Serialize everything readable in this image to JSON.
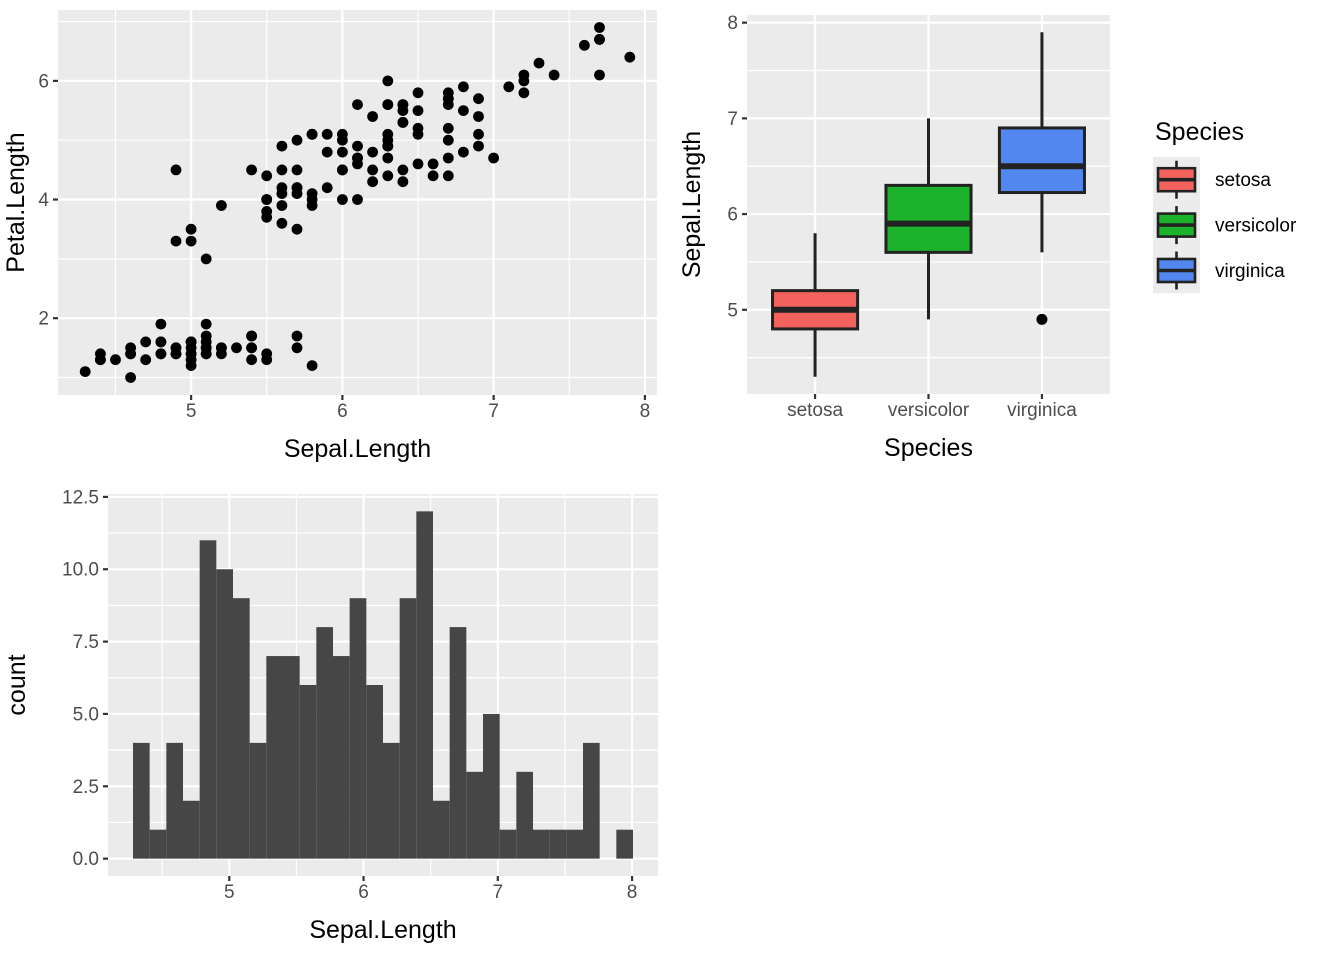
{
  "figure": {
    "background": "#FFFFFF"
  },
  "theme": {
    "panel_bg": "#EBEBEB",
    "grid_color": "#FFFFFF",
    "tick_color": "#333333",
    "tick_label_color": "#4D4D4D",
    "title_color": "#000000",
    "stroke_dark": "#222222",
    "point_color": "#000000",
    "hist_fill": "#464646",
    "legend_key_bg": "#ECECEC"
  },
  "chart_data": [
    {
      "type": "scatter",
      "xlabel": "Sepal.Length",
      "ylabel": "Petal.Length",
      "xlim": [
        4.12,
        8.08
      ],
      "ylim": [
        0.705,
        7.195
      ],
      "xticks": [
        5,
        6,
        7,
        8
      ],
      "xtick_labels": [
        "5",
        "6",
        "7",
        "8"
      ],
      "yticks": [
        2,
        4,
        6
      ],
      "ytick_labels": [
        "2",
        "4",
        "6"
      ],
      "xminor": [
        4.5,
        5.5,
        6.5,
        7.5
      ],
      "yminor": [
        1,
        3,
        5,
        7
      ],
      "x": [
        5.1,
        4.9,
        4.7,
        4.6,
        5.0,
        5.4,
        4.6,
        5.0,
        4.4,
        4.9,
        5.4,
        4.8,
        4.8,
        4.3,
        5.8,
        5.7,
        5.4,
        5.1,
        5.7,
        5.1,
        5.4,
        5.1,
        4.6,
        5.1,
        4.8,
        5.0,
        5.0,
        5.2,
        5.2,
        4.7,
        4.8,
        5.4,
        5.2,
        5.5,
        4.9,
        5.0,
        5.5,
        4.9,
        4.4,
        5.1,
        5.0,
        4.5,
        4.4,
        5.0,
        5.1,
        4.8,
        5.1,
        4.6,
        5.3,
        5.0,
        7.0,
        6.4,
        6.9,
        5.5,
        6.5,
        5.7,
        6.3,
        4.9,
        6.6,
        5.2,
        5.0,
        5.9,
        6.0,
        6.1,
        5.6,
        6.7,
        5.6,
        5.8,
        6.2,
        5.6,
        5.9,
        6.1,
        6.3,
        6.1,
        6.4,
        6.6,
        6.8,
        6.7,
        6.0,
        5.7,
        5.5,
        5.5,
        5.8,
        6.0,
        5.4,
        6.0,
        6.7,
        6.3,
        5.6,
        5.5,
        5.5,
        6.1,
        5.8,
        5.0,
        5.6,
        5.7,
        5.7,
        6.2,
        5.1,
        5.7,
        6.3,
        5.8,
        7.1,
        6.3,
        6.5,
        7.6,
        4.9,
        7.3,
        6.7,
        7.2,
        6.5,
        6.4,
        6.8,
        5.7,
        5.8,
        6.4,
        6.5,
        7.7,
        7.7,
        6.0,
        6.9,
        5.6,
        7.7,
        6.3,
        6.7,
        7.2,
        6.2,
        6.1,
        6.4,
        7.2,
        7.4,
        7.9,
        6.4,
        6.3,
        6.1,
        7.7,
        6.3,
        6.4,
        6.0,
        6.9,
        6.7,
        6.9,
        5.8,
        6.8,
        6.7,
        6.7,
        6.3,
        6.5,
        6.2,
        5.9
      ],
      "y": [
        1.4,
        1.4,
        1.3,
        1.5,
        1.4,
        1.7,
        1.4,
        1.5,
        1.4,
        1.5,
        1.5,
        1.6,
        1.4,
        1.1,
        1.2,
        1.5,
        1.3,
        1.4,
        1.7,
        1.5,
        1.7,
        1.5,
        1.0,
        1.7,
        1.9,
        1.6,
        1.6,
        1.5,
        1.4,
        1.6,
        1.6,
        1.5,
        1.5,
        1.4,
        1.5,
        1.2,
        1.3,
        1.4,
        1.3,
        1.5,
        1.3,
        1.3,
        1.3,
        1.6,
        1.9,
        1.4,
        1.6,
        1.4,
        1.5,
        1.4,
        4.7,
        4.5,
        4.9,
        4.0,
        4.6,
        4.5,
        4.7,
        3.3,
        4.6,
        3.9,
        3.5,
        4.2,
        4.0,
        4.7,
        3.6,
        4.4,
        4.5,
        4.1,
        4.5,
        3.9,
        4.8,
        4.0,
        4.9,
        4.7,
        4.3,
        4.4,
        4.8,
        5.0,
        4.5,
        3.5,
        3.8,
        3.7,
        3.9,
        5.1,
        4.5,
        4.5,
        4.7,
        4.4,
        4.1,
        4.0,
        4.4,
        4.6,
        4.0,
        3.3,
        4.2,
        4.2,
        4.2,
        4.3,
        3.0,
        4.1,
        6.0,
        5.1,
        5.9,
        5.6,
        5.8,
        6.6,
        4.5,
        6.3,
        5.8,
        6.1,
        5.1,
        5.3,
        5.5,
        5.0,
        5.1,
        5.3,
        5.5,
        6.7,
        6.9,
        5.0,
        5.7,
        4.9,
        6.7,
        4.9,
        5.7,
        6.0,
        4.8,
        4.9,
        5.6,
        5.8,
        6.1,
        6.4,
        5.6,
        5.1,
        5.6,
        6.1,
        5.6,
        5.5,
        4.8,
        5.4,
        5.6,
        5.1,
        5.1,
        5.9,
        5.7,
        5.2,
        5.0,
        5.2,
        5.4,
        5.1
      ]
    },
    {
      "type": "boxplot",
      "xlabel": "Species",
      "ylabel": "Sepal.Length",
      "categories": [
        "setosa",
        "versicolor",
        "virginica"
      ],
      "colors": [
        "#F4625D",
        "#1CB22B",
        "#5187EE"
      ],
      "stats": [
        {
          "whislo": 4.3,
          "q1": 4.8,
          "med": 5.0,
          "q3": 5.2,
          "whishi": 5.8,
          "outliers": []
        },
        {
          "whislo": 4.9,
          "q1": 5.6,
          "med": 5.9,
          "q3": 6.3,
          "whishi": 7.0,
          "outliers": []
        },
        {
          "whislo": 5.6,
          "q1": 6.225,
          "med": 6.5,
          "q3": 6.9,
          "whishi": 7.9,
          "outliers": [
            4.9
          ]
        }
      ],
      "xlim": [
        0.4,
        3.6
      ],
      "ylim": [
        4.12,
        8.08
      ],
      "yticks": [
        5,
        6,
        7,
        8
      ],
      "ytick_labels": [
        "5",
        "6",
        "7",
        "8"
      ],
      "yminor": [
        4.5,
        5.5,
        6.5,
        7.5
      ],
      "box_width": 0.75,
      "legend": {
        "title": "Species",
        "entries": [
          "setosa",
          "versicolor",
          "virginica"
        ]
      }
    },
    {
      "type": "histogram",
      "xlabel": "Sepal.Length",
      "ylabel": "count",
      "bin_start": 4.2827586,
      "bin_width": 0.1241379,
      "counts": [
        4,
        1,
        4,
        2,
        11,
        10,
        9,
        4,
        7,
        7,
        6,
        8,
        7,
        9,
        6,
        4,
        9,
        12,
        2,
        8,
        3,
        5,
        1,
        3,
        1,
        1,
        1,
        4,
        0,
        1
      ],
      "xlim": [
        4.0966,
        8.1931
      ],
      "ylim": [
        -0.6,
        12.6
      ],
      "xticks": [
        5,
        6,
        7,
        8
      ],
      "xtick_labels": [
        "5",
        "6",
        "7",
        "8"
      ],
      "yticks": [
        0,
        2.5,
        5,
        7.5,
        10,
        12.5
      ],
      "ytick_labels": [
        "0.0",
        "2.5",
        "5.0",
        "7.5",
        "10.0",
        "12.5"
      ],
      "xminor": [
        4.5,
        5.5,
        6.5,
        7.5
      ],
      "yminor": [
        1.25,
        3.75,
        6.25,
        8.75,
        11.25
      ]
    }
  ]
}
